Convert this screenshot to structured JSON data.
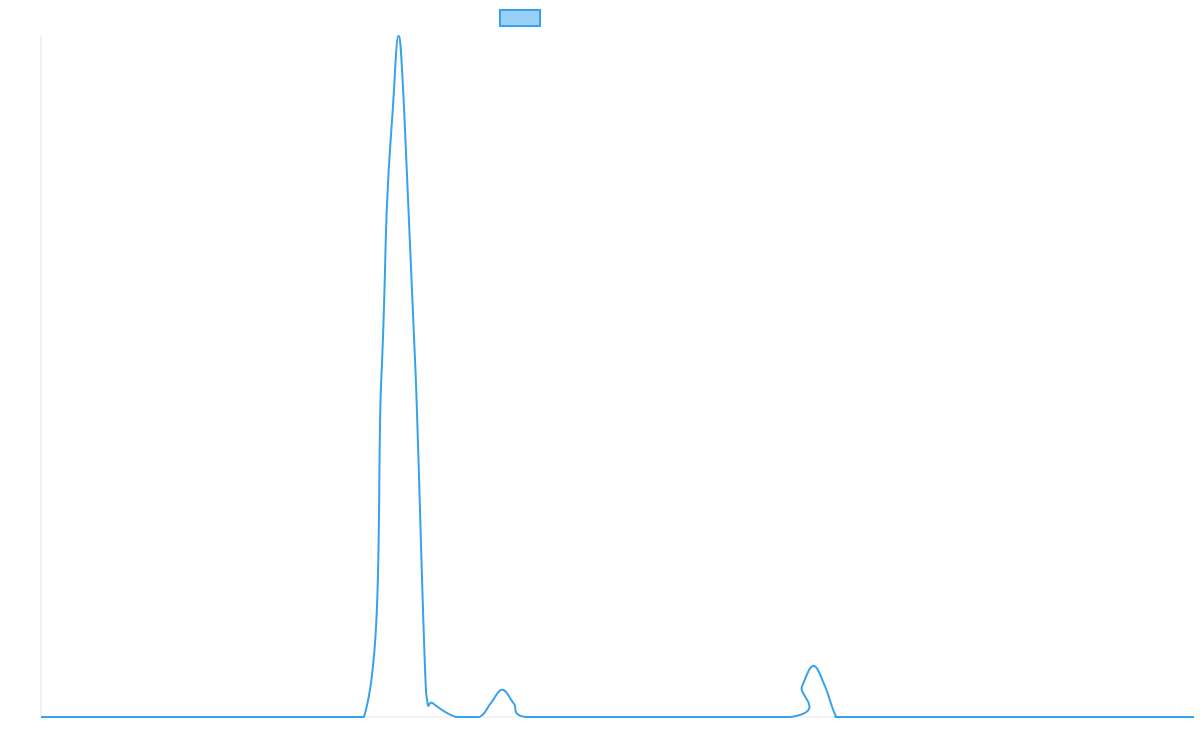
{
  "chart_data": {
    "type": "line",
    "title": "",
    "xlabel": "",
    "ylabel": "",
    "xlim": [
      0,
      1000
    ],
    "ylim": [
      0,
      100
    ],
    "grid": false,
    "legend": {
      "placement": "top-center",
      "label": ""
    },
    "series": [
      {
        "color": "#36a2eb",
        "fill": "#9ad0f5",
        "x": [
          0,
          100,
          200,
          280,
          295,
          300,
          305,
          310,
          315,
          325,
          334,
          340,
          360,
          380,
          390,
          400,
          410,
          420,
          480,
          650,
          660,
          670,
          680,
          690,
          700,
          800,
          900,
          1000
        ],
        "y": [
          0,
          0,
          0,
          0,
          49,
          75,
          89,
          100,
          89,
          50,
          3.5,
          2,
          0,
          0,
          2,
          4,
          2,
          0,
          0,
          0,
          4.5,
          7.5,
          4.5,
          0,
          0,
          0,
          0,
          0
        ]
      }
    ]
  }
}
